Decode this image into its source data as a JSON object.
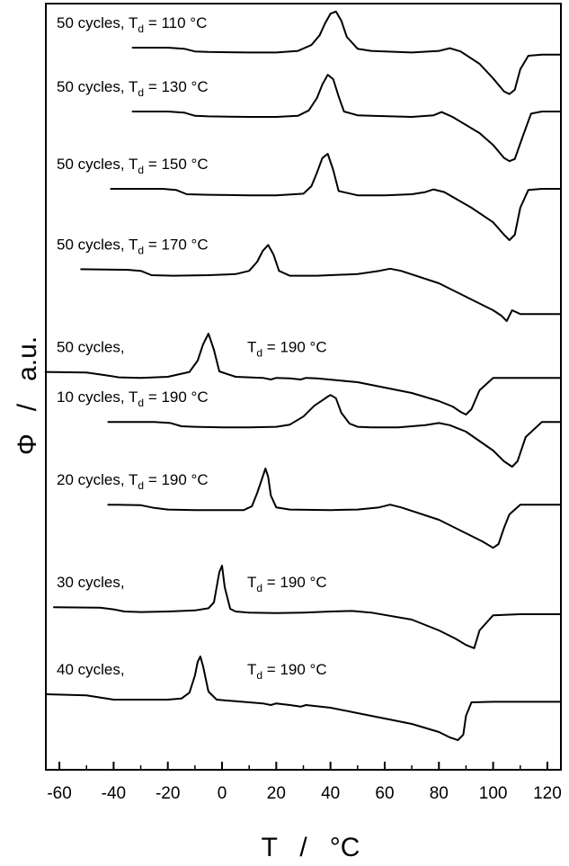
{
  "chart_data": {
    "type": "line",
    "title": "",
    "xlabel": "T   /   °C",
    "ylabel": "Φ   /   a.u.",
    "xlim": [
      -65,
      125
    ],
    "xticks": [
      -60,
      -40,
      -20,
      0,
      20,
      40,
      60,
      80,
      100,
      120
    ],
    "y_ticks_shown": false,
    "grid": false,
    "legend": "none",
    "line_color": "#000000",
    "series": [
      {
        "label_prefix": "50 cycles, ",
        "label_suffix": " = 110 °C",
        "label_spaced": false,
        "x": [
          -33,
          -20,
          -14,
          -10,
          -5,
          10,
          20,
          28,
          33,
          36,
          38,
          40,
          42,
          44,
          46,
          50,
          55,
          70,
          80,
          84,
          88,
          95,
          100,
          104,
          106,
          108,
          110,
          113,
          118,
          125
        ],
        "y": [
          4.5,
          4.5,
          4.3,
          3.8,
          3.7,
          3.6,
          3.6,
          3.9,
          5.0,
          6.8,
          9.0,
          10.8,
          11.2,
          9.5,
          6.5,
          4.3,
          3.9,
          3.6,
          3.9,
          4.4,
          3.8,
          1.5,
          -1.2,
          -3.6,
          -4.1,
          -3.3,
          0.5,
          3.0,
          3.2,
          3.2
        ]
      },
      {
        "label_prefix": "50 cycles, ",
        "label_suffix": " = 130 °C",
        "label_spaced": false,
        "x": [
          -33,
          -20,
          -14,
          -10,
          -5,
          10,
          20,
          28,
          32,
          35,
          37,
          39,
          41,
          43,
          45,
          50,
          55,
          70,
          78,
          81,
          85,
          95,
          100,
          104,
          106,
          108,
          111,
          114,
          118,
          125
        ],
        "y": [
          4.0,
          4.0,
          3.8,
          3.2,
          3.1,
          3.0,
          3.0,
          3.2,
          4.2,
          6.5,
          9.0,
          10.8,
          10.0,
          6.8,
          4.0,
          3.3,
          3.2,
          3.0,
          3.3,
          3.9,
          3.0,
          0.0,
          -2.2,
          -4.6,
          -5.2,
          -4.8,
          -0.5,
          3.6,
          4.0,
          4.0
        ]
      },
      {
        "label_prefix": "50 cycles, ",
        "label_suffix": " = 150 °C",
        "label_spaced": false,
        "x": [
          -41,
          -22,
          -17,
          -13,
          -5,
          10,
          20,
          30,
          33,
          35,
          37,
          39,
          41,
          43,
          50,
          60,
          70,
          75,
          78,
          82,
          92,
          100,
          104,
          106,
          108,
          110,
          113,
          118,
          125
        ],
        "y": [
          4.0,
          4.0,
          3.8,
          3.0,
          2.9,
          2.8,
          2.8,
          3.1,
          4.5,
          7.0,
          9.7,
          10.5,
          7.5,
          3.6,
          2.8,
          2.8,
          3.0,
          3.4,
          3.9,
          3.4,
          0.5,
          -2.2,
          -4.5,
          -5.5,
          -4.5,
          0.5,
          3.8,
          4.0,
          4.0
        ]
      },
      {
        "label_prefix": "50 cycles, ",
        "label_suffix": " = 170 °C",
        "label_spaced": false,
        "x": [
          -52,
          -35,
          -30,
          -26,
          -18,
          -5,
          5,
          10,
          13,
          15,
          17,
          19,
          21,
          25,
          35,
          50,
          58,
          62,
          66,
          80,
          90,
          96,
          100,
          103,
          105,
          107,
          110,
          125
        ],
        "y": [
          4.1,
          4.0,
          3.8,
          3.0,
          2.9,
          3.0,
          3.2,
          3.8,
          5.5,
          7.5,
          8.6,
          6.8,
          3.8,
          2.9,
          2.9,
          3.2,
          3.8,
          4.2,
          3.8,
          1.5,
          -1.0,
          -2.5,
          -3.5,
          -4.5,
          -5.5,
          -3.5,
          -4.2,
          -4.2
        ]
      },
      {
        "label_prefix": "50 cycles,",
        "label_suffix": " = 190 °C",
        "label_spaced": true,
        "x": [
          -65,
          -50,
          -43,
          -38,
          -30,
          -20,
          -12,
          -9,
          -7,
          -5,
          -3,
          -1,
          5,
          15,
          18,
          20,
          25,
          29,
          31,
          35,
          50,
          60,
          70,
          80,
          85,
          88,
          90,
          92,
          95,
          100,
          110,
          125
        ],
        "y": [
          2.4,
          2.3,
          1.8,
          1.4,
          1.3,
          1.5,
          2.4,
          4.5,
          7.5,
          9.5,
          6.5,
          2.5,
          1.5,
          1.3,
          1.0,
          1.3,
          1.2,
          1.0,
          1.3,
          1.2,
          0.5,
          -0.5,
          -1.5,
          -3.0,
          -4.0,
          -5.0,
          -5.5,
          -4.5,
          -1.0,
          1.3,
          1.3,
          1.3
        ]
      },
      {
        "label_prefix": "10 cycles, ",
        "label_suffix": " = 190 °C",
        "label_spaced": false,
        "x": [
          -42,
          -25,
          -19,
          -15,
          -10,
          0,
          10,
          20,
          25,
          30,
          34,
          37,
          39,
          40,
          42,
          44,
          47,
          50,
          55,
          65,
          75,
          80,
          84,
          90,
          100,
          104,
          107,
          109,
          112,
          118,
          125
        ],
        "y": [
          3.8,
          3.8,
          3.6,
          3.0,
          2.9,
          2.8,
          2.8,
          2.9,
          3.3,
          4.8,
          6.8,
          7.8,
          8.5,
          8.8,
          8.2,
          5.5,
          3.5,
          2.9,
          2.8,
          2.8,
          3.2,
          3.6,
          3.2,
          2.0,
          -1.5,
          -3.5,
          -4.5,
          -3.5,
          1.0,
          3.8,
          3.8
        ]
      },
      {
        "label_prefix": "20 cycles, ",
        "label_suffix": " = 190 °C",
        "label_spaced": false,
        "x": [
          -42,
          -30,
          -25,
          -20,
          -10,
          0,
          8,
          11,
          13,
          15,
          16,
          17,
          18,
          20,
          25,
          40,
          50,
          58,
          62,
          66,
          80,
          90,
          96,
          100,
          102,
          104,
          106,
          110,
          125
        ],
        "y": [
          3.8,
          3.7,
          3.2,
          2.9,
          2.8,
          2.8,
          2.8,
          3.5,
          6.0,
          9.0,
          10.5,
          9.0,
          5.5,
          3.3,
          2.9,
          2.8,
          2.9,
          3.3,
          3.8,
          3.3,
          1.0,
          -1.5,
          -3.0,
          -4.2,
          -3.5,
          -0.5,
          2.0,
          3.8,
          3.8
        ]
      },
      {
        "label_prefix": "30 cycles,",
        "label_suffix": " = 190 °C",
        "label_spaced": true,
        "x": [
          -62,
          -45,
          -40,
          -36,
          -30,
          -20,
          -10,
          -5,
          -3,
          -2,
          -1,
          0,
          1,
          3,
          5,
          10,
          20,
          30,
          40,
          48,
          55,
          70,
          80,
          86,
          90,
          93,
          95,
          100,
          110,
          125
        ],
        "y": [
          2.8,
          2.7,
          2.4,
          2.0,
          1.9,
          2.0,
          2.2,
          2.6,
          3.7,
          6.5,
          9.3,
          10.5,
          6.5,
          2.5,
          2.0,
          1.8,
          1.7,
          1.8,
          2.0,
          2.1,
          1.8,
          0.5,
          -1.5,
          -3.0,
          -4.2,
          -4.8,
          -1.5,
          1.3,
          1.5,
          1.5
        ]
      },
      {
        "label_prefix": "40 cycles,",
        "label_suffix": " = 190 °C",
        "label_spaced": true,
        "x": [
          -65,
          -50,
          -45,
          -40,
          -30,
          -20,
          -15,
          -12,
          -10,
          -9,
          -8,
          -7,
          -5,
          -2,
          5,
          15,
          18,
          20,
          25,
          29,
          31,
          40,
          50,
          60,
          70,
          80,
          84,
          87,
          89,
          90,
          92,
          100,
          125
        ],
        "y": [
          3.0,
          2.8,
          2.4,
          2.0,
          2.0,
          2.0,
          2.2,
          3.3,
          6.5,
          9.0,
          10.0,
          8.2,
          3.5,
          2.0,
          1.7,
          1.3,
          1.0,
          1.3,
          1.0,
          0.7,
          1.0,
          0.5,
          -0.5,
          -1.5,
          -2.5,
          -4.0,
          -5.0,
          -5.5,
          -4.5,
          -1.0,
          1.5,
          1.6,
          1.6
        ]
      }
    ]
  }
}
